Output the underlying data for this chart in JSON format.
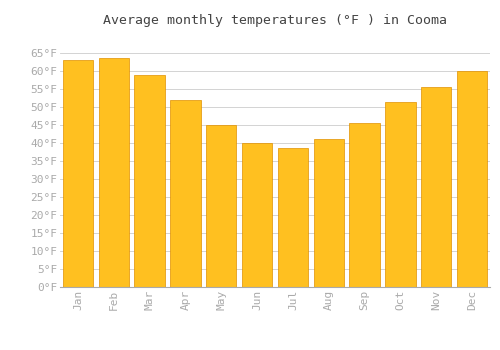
{
  "title": "Average monthly temperatures (°F ) in Cooma",
  "months": [
    "Jan",
    "Feb",
    "Mar",
    "Apr",
    "May",
    "Jun",
    "Jul",
    "Aug",
    "Sep",
    "Oct",
    "Nov",
    "Dec"
  ],
  "values": [
    63,
    63.5,
    59,
    52,
    45,
    40,
    38.5,
    41,
    45.5,
    51.5,
    55.5,
    60
  ],
  "bar_color": "#FFC020",
  "bar_edge_color": "#E09000",
  "background_color": "#FFFFFF",
  "grid_color": "#CCCCCC",
  "ylim": [
    0,
    70
  ],
  "yticks": [
    0,
    5,
    10,
    15,
    20,
    25,
    30,
    35,
    40,
    45,
    50,
    55,
    60,
    65
  ],
  "title_fontsize": 9.5,
  "tick_fontsize": 8,
  "tick_color": "#AAAAAA",
  "title_color": "#444444"
}
